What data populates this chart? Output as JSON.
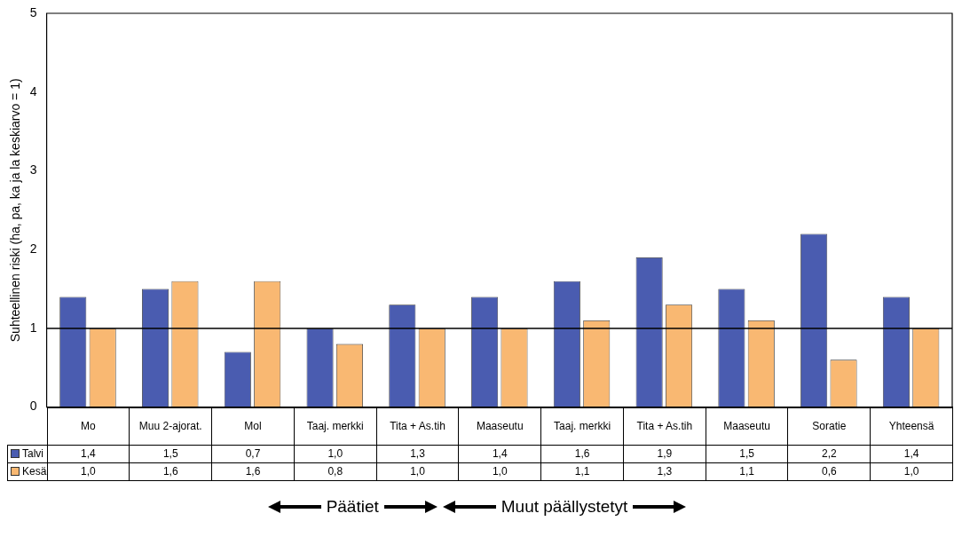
{
  "chart_data": {
    "type": "bar",
    "ylabel": "Suhteellinen riski (ha, pa, ka ja la keskiarvo = 1)",
    "categories": [
      "Mo",
      "Muu 2-ajorat.",
      "Mol",
      "Taaj. merkki",
      "Tita + As.tih",
      "Maaseutu",
      "Taaj. merkki",
      "Tita + As.tih",
      "Maaseutu",
      "Soratie",
      "Yhteensä"
    ],
    "series": [
      {
        "name": "Talvi",
        "color": "#4a5cb0",
        "values": [
          1.4,
          1.5,
          0.7,
          1.0,
          1.3,
          1.4,
          1.6,
          1.9,
          1.5,
          2.2,
          1.4
        ],
        "value_labels": [
          "1,4",
          "1,5",
          "0,7",
          "1,0",
          "1,3",
          "1,4",
          "1,6",
          "1,9",
          "1,5",
          "2,2",
          "1,4"
        ]
      },
      {
        "name": "Kesä",
        "color": "#f9b872",
        "values": [
          1.0,
          1.6,
          1.6,
          0.8,
          1.0,
          1.0,
          1.1,
          1.3,
          1.1,
          0.6,
          1.0
        ],
        "value_labels": [
          "1,0",
          "1,6",
          "1,6",
          "0,8",
          "1,0",
          "1,0",
          "1,1",
          "1,3",
          "1,1",
          "0,6",
          "1,0"
        ]
      }
    ],
    "ylim": [
      0,
      5
    ],
    "yticks": [
      0,
      1,
      2,
      3,
      4,
      5
    ],
    "grid": false,
    "legend": "bottom",
    "ref_lines": [
      {
        "axis": "y",
        "value": 1
      }
    ],
    "annotations": [
      "Päätiet",
      "Muut päällystetyt"
    ]
  }
}
